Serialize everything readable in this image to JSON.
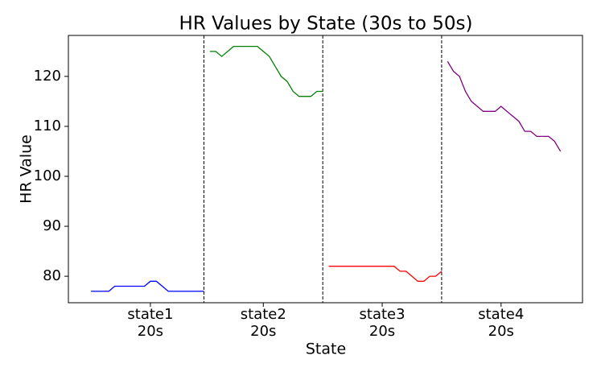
{
  "chart_data": {
    "type": "line",
    "title": "HR Values by State (30s to 50s)",
    "x_label": "State",
    "y_label": "HR Value",
    "xlim": [
      -3.8,
      82.7
    ],
    "ylim": [
      74.7,
      128.2
    ],
    "yticks": [
      80,
      90,
      100,
      110,
      120
    ],
    "xticks": [
      {
        "value": 10,
        "label": "state1\n20s"
      },
      {
        "value": 29,
        "label": "state2\n20s"
      },
      {
        "value": 49,
        "label": "state3\n20s"
      },
      {
        "value": 69,
        "label": "state4\n20s"
      }
    ],
    "dividers": [
      19,
      39,
      59
    ],
    "series": [
      {
        "name": "state1",
        "color": "#0000ff",
        "x": [
          0,
          1,
          2,
          3,
          4,
          5,
          6,
          7,
          8,
          9,
          10,
          11,
          12,
          13,
          14,
          15,
          16,
          17,
          18,
          19
        ],
        "values": [
          77,
          77,
          77,
          77,
          78,
          78,
          78,
          78,
          78,
          78,
          79,
          79,
          78,
          77,
          77,
          77,
          77,
          77,
          77,
          77
        ]
      },
      {
        "name": "state2",
        "color": "#008000",
        "x": [
          20,
          21,
          22,
          23,
          24,
          25,
          26,
          27,
          28,
          29,
          30,
          31,
          32,
          33,
          34,
          35,
          36,
          37,
          38,
          39
        ],
        "values": [
          125,
          125,
          124,
          125,
          126,
          126,
          126,
          126,
          126,
          125,
          124,
          122,
          120,
          119,
          117,
          116,
          116,
          116,
          117,
          117
        ]
      },
      {
        "name": "state3",
        "color": "#ff0000",
        "x": [
          40,
          41,
          42,
          43,
          44,
          45,
          46,
          47,
          48,
          49,
          50,
          51,
          52,
          53,
          54,
          55,
          56,
          57,
          58,
          59
        ],
        "values": [
          82,
          82,
          82,
          82,
          82,
          82,
          82,
          82,
          82,
          82,
          82,
          82,
          81,
          81,
          80,
          79,
          79,
          80,
          80,
          81
        ]
      },
      {
        "name": "state4",
        "color": "#800080",
        "x": [
          60,
          61,
          62,
          63,
          64,
          65,
          66,
          67,
          68,
          69,
          70,
          71,
          72,
          73,
          74,
          75,
          76,
          77,
          78,
          79
        ],
        "values": [
          123,
          121,
          120,
          117,
          115,
          114,
          113,
          113,
          113,
          114,
          113,
          112,
          111,
          109,
          109,
          108,
          108,
          108,
          107,
          105
        ]
      }
    ]
  }
}
